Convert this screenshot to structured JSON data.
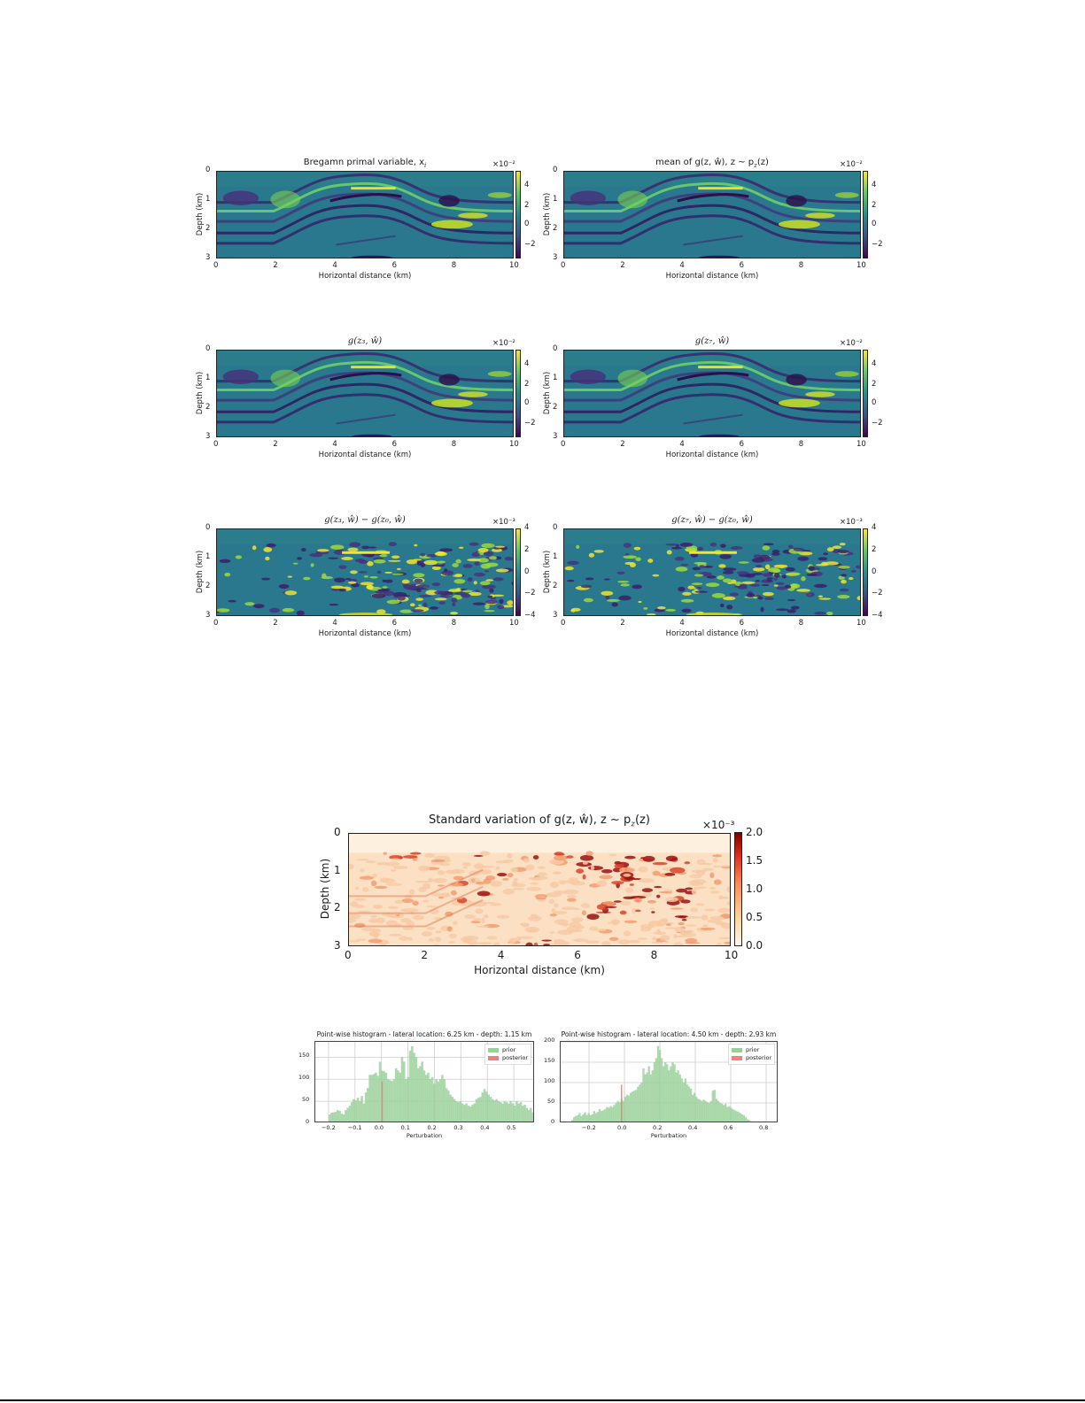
{
  "figure": {
    "panels": [
      {
        "id": "p1",
        "title": "Bregamn primal variable, x",
        "title_sub": "i",
        "kind": "viridis",
        "scale": "×10⁻²",
        "cbar_ticks": [
          "4",
          "2",
          "0",
          "−2"
        ],
        "xlabel": "Horizontal distance (km)",
        "ylabel": "Depth (km)"
      },
      {
        "id": "p2",
        "title": "mean of g(z, ŵ),  z ~ p",
        "title_sub": "z",
        "title_tail": "(z)",
        "kind": "viridis",
        "scale": "×10⁻²",
        "cbar_ticks": [
          "4",
          "2",
          "0",
          "−2"
        ],
        "xlabel": "Horizontal distance (km)",
        "ylabel": "Depth (km)"
      },
      {
        "id": "p3",
        "title": "g(z₃, ŵ)",
        "kind": "viridis",
        "scale": "×10⁻²",
        "cbar_ticks": [
          "4",
          "2",
          "0",
          "−2"
        ],
        "xlabel": "Horizontal distance (km)",
        "ylabel": "Depth (km)"
      },
      {
        "id": "p4",
        "title": "g(z₇, ŵ)",
        "kind": "viridis",
        "scale": "×10⁻²",
        "cbar_ticks": [
          "4",
          "2",
          "0",
          "−2"
        ],
        "xlabel": "Horizontal distance (km)",
        "ylabel": "Depth (km)"
      },
      {
        "id": "p5",
        "title": "g(z₃, ŵ) − g(z₀, ŵ)",
        "kind": "viridis-diff",
        "scale": "×10⁻³",
        "cbar_ticks": [
          "4",
          "2",
          "0",
          "−2",
          "−4"
        ],
        "xlabel": "Horizontal distance (km)",
        "ylabel": "Depth (km)"
      },
      {
        "id": "p6",
        "title": "g(z₇, ŵ) − g(z₀, ŵ)",
        "kind": "viridis-diff",
        "scale": "×10⁻³",
        "cbar_ticks": [
          "4",
          "2",
          "0",
          "−2",
          "−4"
        ],
        "xlabel": "Horizontal distance (km)",
        "ylabel": "Depth (km)"
      }
    ],
    "x_ticks": [
      "0",
      "2",
      "4",
      "6",
      "8",
      "10"
    ],
    "y_ticks": [
      "0",
      "1",
      "2",
      "3"
    ],
    "std_panel": {
      "title": "Standard variation of g(z, ŵ),  z ~ p",
      "title_sub": "z",
      "title_tail": "(z)",
      "scale": "×10⁻³",
      "cbar_ticks": [
        "2.0",
        "1.5",
        "1.0",
        "0.5",
        "0.0"
      ],
      "xlabel": "Horizontal distance (km)",
      "ylabel": "Depth (km)"
    },
    "colors": {
      "viridis_low": "#440154",
      "viridis_mid": "#21908c",
      "viridis_high": "#fde725",
      "background_teal": "#2a788e",
      "reds_low": "#fff5eb",
      "reds_high": "#7f0000",
      "prior": "#98d098",
      "posterior": "#f08080"
    }
  },
  "chart_data": [
    {
      "type": "heatmap",
      "title": "Bregamn primal variable, x_i",
      "xlabel": "Horizontal distance (km)",
      "ylabel": "Depth (km)",
      "xlim": [
        0,
        10
      ],
      "ylim": [
        3,
        0
      ],
      "colorbar": {
        "cmap": "viridis",
        "range": [
          -3,
          5
        ],
        "ticks": [
          -2,
          0,
          2,
          4
        ],
        "scale": "1e-2"
      }
    },
    {
      "type": "heatmap",
      "title": "mean of g(z, ŵ), z ~ p_z(z)",
      "xlabel": "Horizontal distance (km)",
      "ylabel": "Depth (km)",
      "xlim": [
        0,
        10
      ],
      "ylim": [
        3,
        0
      ],
      "colorbar": {
        "cmap": "viridis",
        "range": [
          -3,
          5
        ],
        "ticks": [
          -2,
          0,
          2,
          4
        ],
        "scale": "1e-2"
      }
    },
    {
      "type": "heatmap",
      "title": "g(z_3, ŵ)",
      "xlabel": "Horizontal distance (km)",
      "ylabel": "Depth (km)",
      "xlim": [
        0,
        10
      ],
      "ylim": [
        3,
        0
      ],
      "colorbar": {
        "cmap": "viridis",
        "range": [
          -3,
          5
        ],
        "ticks": [
          -2,
          0,
          2,
          4
        ],
        "scale": "1e-2"
      }
    },
    {
      "type": "heatmap",
      "title": "g(z_7, ŵ)",
      "xlabel": "Horizontal distance (km)",
      "ylabel": "Depth (km)",
      "xlim": [
        0,
        10
      ],
      "ylim": [
        3,
        0
      ],
      "colorbar": {
        "cmap": "viridis",
        "range": [
          -3,
          5
        ],
        "ticks": [
          -2,
          0,
          2,
          4
        ],
        "scale": "1e-2"
      }
    },
    {
      "type": "heatmap",
      "title": "g(z_3, ŵ) − g(z_0, ŵ)",
      "xlabel": "Horizontal distance (km)",
      "ylabel": "Depth (km)",
      "xlim": [
        0,
        10
      ],
      "ylim": [
        3,
        0
      ],
      "colorbar": {
        "cmap": "viridis",
        "range": [
          -4,
          4
        ],
        "ticks": [
          -4,
          -2,
          0,
          2,
          4
        ],
        "scale": "1e-3"
      }
    },
    {
      "type": "heatmap",
      "title": "g(z_7, ŵ) − g(z_0, ŵ)",
      "xlabel": "Horizontal distance (km)",
      "ylabel": "Depth (km)",
      "xlim": [
        0,
        10
      ],
      "ylim": [
        3,
        0
      ],
      "colorbar": {
        "cmap": "viridis",
        "range": [
          -4,
          4
        ],
        "ticks": [
          -4,
          -2,
          0,
          2,
          4
        ],
        "scale": "1e-3"
      }
    },
    {
      "type": "heatmap",
      "title": "Standard variation of g(z, ŵ), z ~ p_z(z)",
      "xlabel": "Horizontal distance (km)",
      "ylabel": "Depth (km)",
      "xlim": [
        0,
        10
      ],
      "ylim": [
        3,
        0
      ],
      "colorbar": {
        "cmap": "OrRd",
        "range": [
          0.0,
          2.0
        ],
        "ticks": [
          0.0,
          0.5,
          1.0,
          1.5,
          2.0
        ],
        "scale": "1e-3"
      }
    },
    {
      "type": "bar",
      "title": "Point-wise histogram - lateral location: 6.25 km - depth: 1.15 km",
      "xlabel": "Perturbation",
      "ylabel": "",
      "xlim": [
        -0.25,
        0.58
      ],
      "ylim": [
        0,
        185
      ],
      "x_ticks": [
        "−0.2",
        "−0.1",
        "0.0",
        "0.1",
        "0.2",
        "0.3",
        "0.4",
        "0.5"
      ],
      "y_ticks": [
        "0",
        "50",
        "100",
        "150"
      ],
      "legend": [
        "prior",
        "posterior"
      ],
      "legend_position": "upper right",
      "grid": true,
      "series": [
        {
          "name": "prior",
          "x_start": -0.2,
          "bin_width": 0.0076,
          "values": [
            20,
            24,
            25,
            26,
            30,
            28,
            22,
            20,
            30,
            35,
            40,
            48,
            55,
            52,
            58,
            50,
            62,
            45,
            70,
            80,
            110,
            110,
            112,
            115,
            108,
            140,
            120,
            118,
            115,
            100,
            98,
            96,
            100,
            125,
            120,
            115,
            150,
            140,
            100,
            105,
            165,
            175,
            160,
            150,
            125,
            130,
            140,
            120,
            110,
            115,
            100,
            105,
            90,
            100,
            95,
            100,
            110,
            100,
            80,
            75,
            65,
            60,
            55,
            50,
            48,
            50,
            45,
            42,
            45,
            40,
            38,
            42,
            45,
            55,
            58,
            60,
            70,
            78,
            72,
            65,
            60,
            55,
            52,
            55,
            50,
            48,
            45,
            50,
            48,
            45,
            50,
            45,
            40,
            50,
            45,
            48,
            40,
            42,
            35,
            30,
            35,
            25,
            28,
            22,
            25,
            20,
            18,
            22,
            15,
            20,
            12,
            15,
            10,
            15,
            18
          ]
        },
        {
          "name": "posterior",
          "x_start": 0.0,
          "bin_width": 0.004,
          "values": [
            95
          ]
        }
      ]
    },
    {
      "type": "bar",
      "title": "Point-wise histogram - lateral location: 4.50 km - depth: 2.93 km",
      "xlabel": "Perturbation",
      "ylabel": "",
      "xlim": [
        -0.36,
        0.87
      ],
      "ylim": [
        0,
        200
      ],
      "x_ticks": [
        "−0.2",
        "0.0",
        "0.2",
        "0.4",
        "0.6",
        "0.8"
      ],
      "y_ticks": [
        "0",
        "50",
        "100",
        "150",
        "200"
      ],
      "legend": [
        "prior",
        "posterior"
      ],
      "legend_position": "upper right",
      "grid": true,
      "series": [
        {
          "name": "prior",
          "x_start": -0.3,
          "bin_width": 0.0103,
          "values": [
            8,
            15,
            18,
            20,
            25,
            18,
            22,
            27,
            20,
            25,
            20,
            22,
            30,
            25,
            28,
            35,
            30,
            32,
            35,
            40,
            38,
            42,
            40,
            45,
            50,
            55,
            52,
            60,
            55,
            65,
            70,
            68,
            75,
            78,
            80,
            82,
            90,
            95,
            100,
            135,
            120,
            125,
            140,
            120,
            130,
            150,
            160,
            190,
            180,
            160,
            140,
            150,
            145,
            130,
            140,
            150,
            145,
            125,
            130,
            120,
            110,
            100,
            110,
            95,
            90,
            85,
            70,
            75,
            65,
            60,
            58,
            55,
            58,
            55,
            52,
            50,
            55,
            80,
            82,
            60,
            55,
            50,
            48,
            45,
            48,
            40,
            42,
            38,
            35,
            32,
            30,
            28,
            25,
            22,
            20,
            15,
            10,
            8,
            5,
            3
          ]
        },
        {
          "name": "posterior",
          "x_start": -0.02,
          "bin_width": 0.006,
          "values": [
            95
          ]
        }
      ]
    }
  ]
}
